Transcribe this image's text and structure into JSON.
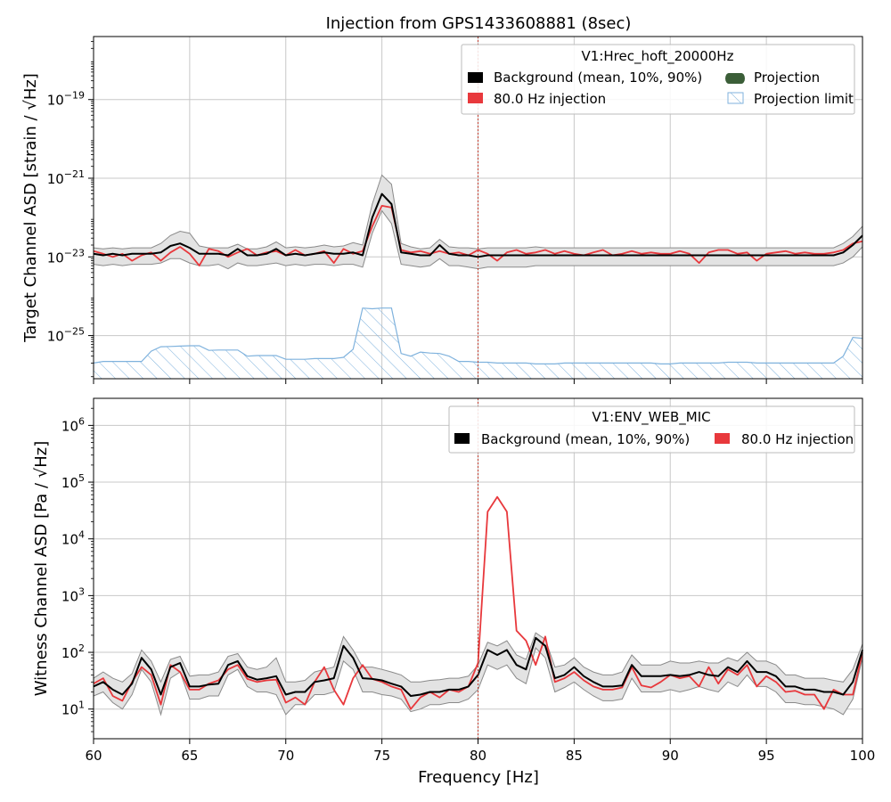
{
  "title": "Injection from GPS1433608881 (8sec)",
  "x_axis": {
    "label": "Frequency [Hz]",
    "ticks": [
      60,
      65,
      70,
      75,
      80,
      85,
      90,
      95,
      100
    ],
    "range": [
      60,
      100
    ],
    "injection_marker_hz": 80
  },
  "chart_data": [
    {
      "type": "line",
      "panel": "top",
      "ylabel": "Target Channel ASD [strain / √Hz]",
      "yscale": "log",
      "ylim": [
        8e-27,
        4e-18
      ],
      "yticks": [
        {
          "exp": -19,
          "label": "10",
          "sup": "−19"
        },
        {
          "exp": -21,
          "label": "10",
          "sup": "−21"
        },
        {
          "exp": -23,
          "label": "10",
          "sup": "−23"
        },
        {
          "exp": -25,
          "label": "10",
          "sup": "−25"
        }
      ],
      "grid": true,
      "legend": {
        "title": "V1:Hrec_hoft_20000Hz",
        "position": "top-right",
        "entries": [
          {
            "label": "Background (mean, 10%, 90%)",
            "color": "#000000"
          },
          {
            "label": "Projection",
            "color": "#3b5e38"
          },
          {
            "label": "80.0 Hz injection",
            "color": "#e8383c"
          },
          {
            "label": "Projection limit",
            "color": "#7fb2dd"
          }
        ]
      },
      "x": [
        60.0,
        60.5,
        61.0,
        61.5,
        62.0,
        62.5,
        63.0,
        63.5,
        64.0,
        64.5,
        65.0,
        65.5,
        66.0,
        66.5,
        67.0,
        67.5,
        68.0,
        68.5,
        69.0,
        69.5,
        70.0,
        70.5,
        71.0,
        71.5,
        72.0,
        72.5,
        73.0,
        73.5,
        74.0,
        74.5,
        75.0,
        75.5,
        76.0,
        76.5,
        77.0,
        77.5,
        78.0,
        78.5,
        79.0,
        79.5,
        80.0,
        80.5,
        81.0,
        81.5,
        82.0,
        82.5,
        83.0,
        83.5,
        84.0,
        84.5,
        85.0,
        85.5,
        86.0,
        86.5,
        87.0,
        87.5,
        88.0,
        88.5,
        89.0,
        89.5,
        90.0,
        90.5,
        91.0,
        91.5,
        92.0,
        92.5,
        93.0,
        93.5,
        94.0,
        94.5,
        95.0,
        95.5,
        96.0,
        96.5,
        97.0,
        97.5,
        98.0,
        98.5,
        99.0,
        99.5,
        100.0
      ],
      "series": [
        {
          "name": "Background (mean, 10%, 90%)",
          "role": "mean",
          "color": "#000000",
          "values": [
            1.2e-23,
            1.1e-23,
            1.2e-23,
            1.1e-23,
            1.2e-23,
            1.2e-23,
            1.2e-23,
            1.3e-23,
            1.9e-23,
            2.2e-23,
            1.7e-23,
            1.2e-23,
            1.2e-23,
            1.2e-23,
            1.1e-23,
            1.6e-23,
            1.1e-23,
            1.1e-23,
            1.2e-23,
            1.6e-23,
            1.1e-23,
            1.2e-23,
            1.1e-23,
            1.2e-23,
            1.3e-23,
            1.2e-23,
            1.2e-23,
            1.3e-23,
            1.1e-23,
            1e-22,
            4e-22,
            2.2e-22,
            1.3e-23,
            1.2e-23,
            1.1e-23,
            1.1e-23,
            2e-23,
            1.2e-23,
            1.1e-23,
            1.1e-23,
            1e-23,
            1.1e-23,
            1.1e-23,
            1.1e-23,
            1.1e-23,
            1.1e-23,
            1.1e-23,
            1.1e-23,
            1.1e-23,
            1.1e-23,
            1.1e-23,
            1.1e-23,
            1.1e-23,
            1.1e-23,
            1.1e-23,
            1.1e-23,
            1.1e-23,
            1.1e-23,
            1.1e-23,
            1.1e-23,
            1.1e-23,
            1.1e-23,
            1.1e-23,
            1.1e-23,
            1.1e-23,
            1.1e-23,
            1.1e-23,
            1.1e-23,
            1.1e-23,
            1.1e-23,
            1.1e-23,
            1.1e-23,
            1.1e-23,
            1.1e-23,
            1.1e-23,
            1.1e-23,
            1.1e-23,
            1.1e-23,
            1.3e-23,
            2e-23,
            3.5e-23
          ]
        },
        {
          "name": "Background (mean, 10%, 90%)",
          "role": "p90",
          "color": "#808080",
          "values": [
            1.7e-23,
            1.6e-23,
            1.7e-23,
            1.6e-23,
            1.7e-23,
            1.7e-23,
            1.7e-23,
            2.2e-23,
            3.5e-23,
            4.5e-23,
            4e-23,
            1.9e-23,
            1.7e-23,
            1.7e-23,
            1.7e-23,
            2.1e-23,
            1.6e-23,
            1.6e-23,
            1.8e-23,
            2.4e-23,
            1.7e-23,
            1.8e-23,
            1.7e-23,
            1.8e-23,
            2e-23,
            1.8e-23,
            1.9e-23,
            2.3e-23,
            2e-23,
            2.2e-22,
            1.2e-21,
            7e-22,
            2.2e-23,
            1.8e-23,
            1.6e-23,
            1.7e-23,
            2.8e-23,
            1.8e-23,
            1.7e-23,
            1.7e-23,
            1.6e-23,
            1.7e-23,
            1.7e-23,
            1.7e-23,
            1.7e-23,
            1.7e-23,
            1.8e-23,
            1.7e-23,
            1.7e-23,
            1.7e-23,
            1.7e-23,
            1.7e-23,
            1.7e-23,
            1.7e-23,
            1.7e-23,
            1.7e-23,
            1.7e-23,
            1.7e-23,
            1.7e-23,
            1.7e-23,
            1.7e-23,
            1.7e-23,
            1.7e-23,
            1.7e-23,
            1.7e-23,
            1.7e-23,
            1.7e-23,
            1.7e-23,
            1.7e-23,
            1.7e-23,
            1.7e-23,
            1.7e-23,
            1.7e-23,
            1.7e-23,
            1.7e-23,
            1.7e-23,
            1.7e-23,
            1.7e-23,
            2.2e-23,
            3.3e-23,
            6e-23
          ]
        },
        {
          "name": "Background (mean, 10%, 90%)",
          "role": "p10",
          "color": "#808080",
          "values": [
            6.5e-24,
            6e-24,
            6.5e-24,
            6e-24,
            6.5e-24,
            6.5e-24,
            6.5e-24,
            7e-24,
            9e-24,
            9e-24,
            7e-24,
            6e-24,
            6e-24,
            6.5e-24,
            5e-24,
            7e-24,
            6e-24,
            6e-24,
            6.5e-24,
            7e-24,
            6e-24,
            6.5e-24,
            6e-24,
            6.5e-24,
            6.5e-24,
            6e-24,
            6.5e-24,
            6.5e-24,
            5.5e-24,
            4e-23,
            1.5e-22,
            7e-23,
            6.5e-24,
            6e-24,
            5.5e-24,
            6e-24,
            9e-24,
            6e-24,
            6e-24,
            5.5e-24,
            5e-24,
            5.5e-24,
            5.5e-24,
            5.5e-24,
            5.5e-24,
            5.5e-24,
            6e-24,
            6e-24,
            6e-24,
            6e-24,
            6e-24,
            6e-24,
            6e-24,
            6e-24,
            6e-24,
            6e-24,
            6e-24,
            6e-24,
            6e-24,
            6e-24,
            6e-24,
            6e-24,
            6e-24,
            6e-24,
            6e-24,
            6e-24,
            6e-24,
            6e-24,
            6e-24,
            6e-24,
            6e-24,
            6e-24,
            6e-24,
            6e-24,
            6e-24,
            6e-24,
            6e-24,
            6e-24,
            7e-24,
            1e-23,
            1.8e-23
          ]
        },
        {
          "name": "80.0 Hz injection",
          "role": "line",
          "color": "#e8383c",
          "values": [
            1.4e-23,
            1.2e-23,
            1e-23,
            1.2e-23,
            8e-24,
            1.1e-23,
            1.3e-23,
            8e-24,
            1.3e-23,
            1.8e-23,
            1.2e-23,
            6e-24,
            1.6e-23,
            1.4e-23,
            1e-23,
            1.3e-23,
            1.6e-23,
            1.1e-23,
            1.3e-23,
            1.4e-23,
            1.1e-23,
            1.5e-23,
            1.1e-23,
            1.2e-23,
            1.4e-23,
            7e-24,
            1.6e-23,
            1.2e-23,
            1.4e-23,
            6e-23,
            2e-22,
            1.8e-22,
            1.5e-23,
            1.3e-23,
            1.4e-23,
            1.2e-23,
            1.4e-23,
            1.2e-23,
            1.3e-23,
            1.1e-23,
            1.5e-23,
            1.2e-23,
            8e-24,
            1.3e-23,
            1.5e-23,
            1.2e-23,
            1.3e-23,
            1.5e-23,
            1.2e-23,
            1.4e-23,
            1.2e-23,
            1.1e-23,
            1.3e-23,
            1.5e-23,
            1.1e-23,
            1.2e-23,
            1.4e-23,
            1.2e-23,
            1.3e-23,
            1.2e-23,
            1.2e-23,
            1.4e-23,
            1.2e-23,
            7e-24,
            1.3e-23,
            1.5e-23,
            1.5e-23,
            1.2e-23,
            1.3e-23,
            8e-24,
            1.2e-23,
            1.3e-23,
            1.4e-23,
            1.2e-23,
            1.3e-23,
            1.2e-23,
            1.2e-23,
            1.3e-23,
            1.5e-23,
            2.2e-23,
            2.5e-23
          ]
        },
        {
          "name": "Projection limit",
          "role": "limit",
          "color": "#7fb2dd",
          "values": [
            2e-26,
            2.2e-26,
            2.2e-26,
            2.2e-26,
            2.2e-26,
            2.2e-26,
            4e-26,
            5.2e-26,
            5.3e-26,
            5.4e-26,
            5.5e-26,
            5.5e-26,
            4.2e-26,
            4.3e-26,
            4.3e-26,
            4.3e-26,
            3e-26,
            3.1e-26,
            3.1e-26,
            3.1e-26,
            2.5e-26,
            2.5e-26,
            2.5e-26,
            2.6e-26,
            2.6e-26,
            2.6e-26,
            2.8e-26,
            4.5e-26,
            5e-25,
            4.8e-25,
            5e-25,
            5e-25,
            3.5e-26,
            3e-26,
            3.8e-26,
            3.6e-26,
            3.5e-26,
            3e-26,
            2.2e-26,
            2.2e-26,
            2.1e-26,
            2.1e-26,
            2e-26,
            2e-26,
            2e-26,
            2e-26,
            1.9e-26,
            1.9e-26,
            1.9e-26,
            2e-26,
            2e-26,
            2e-26,
            2e-26,
            2e-26,
            2e-26,
            2e-26,
            2e-26,
            2e-26,
            2e-26,
            1.9e-26,
            1.9e-26,
            2e-26,
            2e-26,
            2e-26,
            2e-26,
            2e-26,
            2.1e-26,
            2.1e-26,
            2.1e-26,
            2e-26,
            2e-26,
            2e-26,
            2e-26,
            2e-26,
            2e-26,
            2e-26,
            2e-26,
            2e-26,
            3e-26,
            9e-26,
            8.5e-26
          ]
        }
      ]
    },
    {
      "type": "line",
      "panel": "bottom",
      "ylabel": "Witness Channel ASD [Pa / √Hz]",
      "yscale": "log",
      "ylim": [
        3,
        3000000.0
      ],
      "yticks": [
        {
          "exp": 1,
          "label": "10",
          "sup": "1"
        },
        {
          "exp": 2,
          "label": "10",
          "sup": "2"
        },
        {
          "exp": 3,
          "label": "10",
          "sup": "3"
        },
        {
          "exp": 4,
          "label": "10",
          "sup": "4"
        },
        {
          "exp": 5,
          "label": "10",
          "sup": "5"
        },
        {
          "exp": 6,
          "label": "10",
          "sup": "6"
        }
      ],
      "grid": true,
      "legend": {
        "title": "V1:ENV_WEB_MIC",
        "position": "top-right",
        "entries": [
          {
            "label": "Background (mean, 10%, 90%)",
            "color": "#000000"
          },
          {
            "label": "80.0 Hz injection",
            "color": "#e8383c"
          }
        ]
      },
      "x": [
        60.0,
        60.5,
        61.0,
        61.5,
        62.0,
        62.5,
        63.0,
        63.5,
        64.0,
        64.5,
        65.0,
        65.5,
        66.0,
        66.5,
        67.0,
        67.5,
        68.0,
        68.5,
        69.0,
        69.5,
        70.0,
        70.5,
        71.0,
        71.5,
        72.0,
        72.5,
        73.0,
        73.5,
        74.0,
        74.5,
        75.0,
        75.5,
        76.0,
        76.5,
        77.0,
        77.5,
        78.0,
        78.5,
        79.0,
        79.5,
        80.0,
        80.5,
        81.0,
        81.5,
        82.0,
        82.5,
        83.0,
        83.5,
        84.0,
        84.5,
        85.0,
        85.5,
        86.0,
        86.5,
        87.0,
        87.5,
        88.0,
        88.5,
        89.0,
        89.5,
        90.0,
        90.5,
        91.0,
        91.5,
        92.0,
        92.5,
        93.0,
        93.5,
        94.0,
        94.5,
        95.0,
        95.5,
        96.0,
        96.5,
        97.0,
        97.5,
        98.0,
        98.5,
        99.0,
        99.5,
        100.0
      ],
      "series": [
        {
          "name": "Background (mean, 10%, 90%)",
          "role": "mean",
          "color": "#000000",
          "values": [
            25,
            30,
            22,
            18,
            28,
            80,
            50,
            18,
            55,
            65,
            25,
            25,
            27,
            28,
            60,
            70,
            38,
            33,
            35,
            38,
            18,
            20,
            20,
            30,
            32,
            35,
            130,
            80,
            35,
            34,
            32,
            28,
            25,
            17,
            18,
            20,
            20,
            22,
            22,
            25,
            40,
            110,
            90,
            110,
            60,
            50,
            180,
            130,
            35,
            40,
            55,
            38,
            30,
            25,
            25,
            26,
            60,
            38,
            38,
            38,
            40,
            38,
            40,
            45,
            40,
            38,
            55,
            45,
            70,
            45,
            45,
            38,
            25,
            25,
            22,
            22,
            20,
            20,
            18,
            30,
            110
          ]
        },
        {
          "name": "Background (mean, 10%, 90%)",
          "role": "p90",
          "color": "#808080",
          "values": [
            35,
            45,
            35,
            30,
            42,
            110,
            70,
            30,
            75,
            85,
            38,
            40,
            40,
            45,
            85,
            95,
            55,
            50,
            55,
            80,
            30,
            30,
            32,
            45,
            50,
            55,
            190,
            110,
            55,
            55,
            50,
            45,
            40,
            30,
            30,
            32,
            33,
            35,
            35,
            38,
            60,
            150,
            130,
            160,
            90,
            75,
            220,
            170,
            55,
            60,
            80,
            55,
            45,
            40,
            40,
            45,
            90,
            60,
            60,
            60,
            70,
            65,
            65,
            70,
            65,
            65,
            80,
            70,
            100,
            70,
            70,
            60,
            40,
            40,
            35,
            35,
            35,
            32,
            30,
            50,
            140
          ]
        },
        {
          "name": "Background (mean, 10%, 90%)",
          "role": "p10",
          "color": "#808080",
          "values": [
            17,
            20,
            13,
            10,
            18,
            50,
            30,
            8,
            35,
            45,
            15,
            15,
            17,
            17,
            40,
            50,
            25,
            20,
            20,
            18,
            8,
            12,
            12,
            18,
            18,
            20,
            70,
            50,
            20,
            20,
            18,
            17,
            15,
            9,
            10,
            12,
            12,
            13,
            13,
            15,
            22,
            60,
            50,
            60,
            35,
            28,
            120,
            80,
            20,
            24,
            30,
            22,
            17,
            14,
            14,
            15,
            35,
            20,
            20,
            20,
            22,
            20,
            22,
            25,
            22,
            20,
            30,
            25,
            40,
            25,
            25,
            20,
            13,
            13,
            12,
            12,
            11,
            10,
            8,
            15,
            80
          ]
        },
        {
          "name": "80.0 Hz injection",
          "role": "line",
          "color": "#e8383c",
          "values": [
            28,
            35,
            17,
            14,
            30,
            55,
            40,
            12,
            60,
            45,
            22,
            22,
            28,
            32,
            50,
            60,
            34,
            30,
            32,
            33,
            13,
            16,
            12,
            30,
            55,
            22,
            12,
            35,
            60,
            34,
            30,
            25,
            22,
            10,
            16,
            20,
            16,
            22,
            20,
            25,
            65,
            30000,
            55000,
            30000,
            240,
            160,
            60,
            190,
            30,
            35,
            45,
            32,
            25,
            22,
            22,
            24,
            55,
            26,
            24,
            30,
            40,
            35,
            38,
            25,
            55,
            28,
            50,
            40,
            60,
            25,
            38,
            30,
            20,
            21,
            18,
            18,
            10,
            22,
            18,
            18,
            100
          ]
        }
      ]
    }
  ]
}
